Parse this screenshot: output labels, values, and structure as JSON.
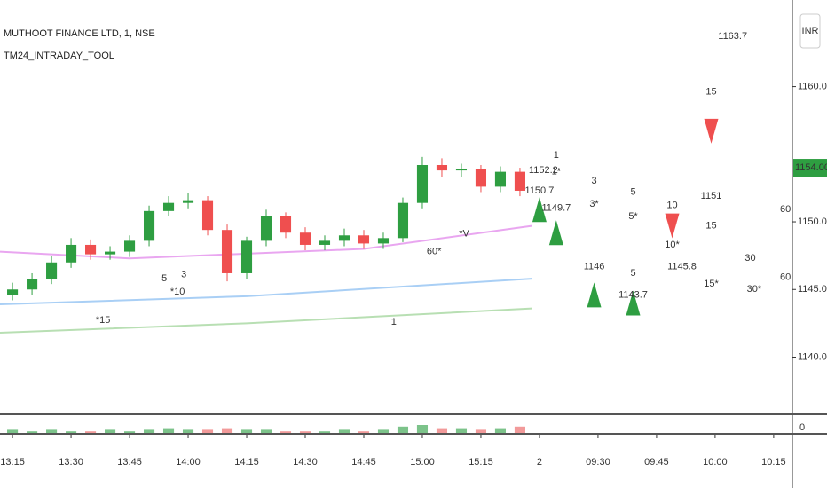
{
  "chart_data": {
    "type": "candlestick",
    "title": "MUTHOOT FINANCE LTD, 1, NSE",
    "subtitle": "TM24_INTRADAY_TOOL",
    "currency": "INR",
    "up_color": "#2e9e41",
    "down_color": "#ef4f4f",
    "xlim": [
      -3.2,
      199.8
    ],
    "xticks": [
      {
        "value": 0,
        "label": "13:15"
      },
      {
        "value": 15,
        "label": "13:30"
      },
      {
        "value": 30,
        "label": "13:45"
      },
      {
        "value": 45,
        "label": "14:00"
      },
      {
        "value": 60,
        "label": "14:15"
      },
      {
        "value": 75,
        "label": "14:30"
      },
      {
        "value": 90,
        "label": "14:45"
      },
      {
        "value": 105,
        "label": "15:00"
      },
      {
        "value": 120,
        "label": "15:15"
      },
      {
        "value": 135,
        "label": "2"
      },
      {
        "value": 150,
        "label": "09:30"
      },
      {
        "value": 165,
        "label": "09:45"
      },
      {
        "value": 180,
        "label": "10:00"
      },
      {
        "value": 195,
        "label": "10:15"
      }
    ],
    "ylim": [
      1135.9,
      1166.4
    ],
    "yticks": [
      {
        "value": 1140,
        "label": "1140.00"
      },
      {
        "value": 1145,
        "label": "1145.00"
      },
      {
        "value": 1150,
        "label": "1150.00"
      },
      {
        "value": 1160,
        "label": "1160.00"
      }
    ],
    "last_price": {
      "value": 1154,
      "label": "1154.00"
    },
    "x": [
      0,
      5,
      10,
      15,
      20,
      25,
      30,
      35,
      40,
      45,
      50,
      55,
      60,
      65,
      70,
      75,
      80,
      85,
      90,
      95,
      100,
      105,
      110,
      115,
      120,
      125,
      130
    ],
    "open": [
      1144.6,
      1145.0,
      1145.8,
      1147.0,
      1148.3,
      1147.6,
      1147.8,
      1148.6,
      1150.8,
      1151.4,
      1151.6,
      1149.4,
      1146.2,
      1148.6,
      1150.4,
      1149.2,
      1148.3,
      1148.6,
      1149.0,
      1148.4,
      1148.8,
      1151.4,
      1154.2,
      1153.8,
      1153.9,
      1152.6,
      1153.7
    ],
    "high": [
      1145.5,
      1146.2,
      1147.5,
      1148.8,
      1148.7,
      1148.2,
      1149.0,
      1151.2,
      1151.9,
      1152.1,
      1151.9,
      1149.8,
      1148.9,
      1150.9,
      1150.7,
      1149.6,
      1149.0,
      1149.5,
      1149.4,
      1149.2,
      1151.8,
      1154.8,
      1154.7,
      1154.3,
      1154.2,
      1154.1,
      1154.0
    ],
    "low": [
      1144.2,
      1144.6,
      1145.4,
      1146.6,
      1147.2,
      1147.2,
      1147.4,
      1148.2,
      1150.4,
      1151.0,
      1149.0,
      1145.6,
      1145.8,
      1148.2,
      1148.8,
      1147.9,
      1147.9,
      1148.2,
      1148.0,
      1148.0,
      1148.5,
      1151.0,
      1153.3,
      1153.3,
      1152.2,
      1152.2,
      1151.9
    ],
    "close": [
      1145.0,
      1145.8,
      1147.0,
      1148.3,
      1147.6,
      1147.8,
      1148.6,
      1150.8,
      1151.4,
      1151.6,
      1149.4,
      1146.2,
      1148.6,
      1150.4,
      1149.2,
      1148.3,
      1148.6,
      1149.0,
      1148.4,
      1148.8,
      1151.4,
      1154.2,
      1153.8,
      1153.9,
      1152.6,
      1153.7,
      1152.3
    ],
    "volume": [
      2,
      1,
      2,
      1,
      1,
      2,
      1,
      2,
      3,
      2,
      2,
      3,
      2,
      2,
      1,
      1,
      1,
      2,
      1,
      2,
      4,
      5,
      3,
      3,
      2,
      3,
      4
    ],
    "volume_ylim": [
      0,
      10
    ],
    "volume_yticks": [
      0
    ],
    "series": [
      {
        "color": "#e9a6f0",
        "x": [
          -3.2,
          30,
          90,
          133
        ],
        "values": [
          1147.8,
          1147.3,
          1148.0,
          1149.7
        ]
      },
      {
        "color": "#a9cff5",
        "x": [
          -3.2,
          60,
          133
        ],
        "values": [
          1143.9,
          1144.5,
          1145.8
        ]
      },
      {
        "color": "#b8dfb3",
        "x": [
          -3.2,
          60,
          133
        ],
        "values": [
          1141.8,
          1142.5,
          1143.6
        ]
      }
    ],
    "signals": [
      {
        "direction": "up",
        "x": 135,
        "y": 1150.9
      },
      {
        "direction": "up",
        "x": 139.3,
        "y": 1149.2
      },
      {
        "direction": "up",
        "x": 149,
        "y": 1144.6
      },
      {
        "direction": "up",
        "x": 159,
        "y": 1144.0
      },
      {
        "direction": "down",
        "x": 169,
        "y": 1149.7
      },
      {
        "direction": "down",
        "x": 179,
        "y": 1156.7
      }
    ],
    "annotations": [
      {
        "text": "1163.7",
        "x": 184.5,
        "y": 1163.7,
        "color": "#ef4f4f"
      },
      {
        "text": "15",
        "x": 179,
        "y": 1159.6,
        "color": "#777"
      },
      {
        "text": "1151",
        "x": 179,
        "y": 1151.9,
        "color": "#ef4f4f"
      },
      {
        "text": "15",
        "x": 179,
        "y": 1149.7,
        "color": "#2e9e41"
      },
      {
        "text": "10",
        "x": 169,
        "y": 1151.2,
        "color": "#2e9e41"
      },
      {
        "text": "10*",
        "x": 169,
        "y": 1148.3,
        "color": "#2e9e41"
      },
      {
        "text": "1145.8",
        "x": 171.5,
        "y": 1146.7,
        "color": "#2e9e41"
      },
      {
        "text": "15*",
        "x": 179,
        "y": 1145.4,
        "color": "#2e9e41"
      },
      {
        "text": "30",
        "x": 189,
        "y": 1147.3,
        "color": "#2e9e41"
      },
      {
        "text": "30*",
        "x": 190,
        "y": 1145.0,
        "color": "#2e9e41"
      },
      {
        "text": "60",
        "x": 198,
        "y": 1150.9,
        "color": "#ef4f4f"
      },
      {
        "text": "60",
        "x": 198,
        "y": 1145.9,
        "color": "#ef4f4f"
      },
      {
        "text": "3",
        "x": 149,
        "y": 1153.0,
        "color": "#2e9e41"
      },
      {
        "text": "3*",
        "x": 149,
        "y": 1151.3,
        "color": "#2e9e41"
      },
      {
        "text": "5",
        "x": 159,
        "y": 1152.2,
        "color": "#2e9e41"
      },
      {
        "text": "5*",
        "x": 159,
        "y": 1150.4,
        "color": "#2e9e41"
      },
      {
        "text": "1146",
        "x": 149,
        "y": 1146.7,
        "color": "#2e9e41"
      },
      {
        "text": "5",
        "x": 159,
        "y": 1146.2,
        "color": "#777"
      },
      {
        "text": "1143.7",
        "x": 159,
        "y": 1144.6,
        "color": "#2e9e41"
      },
      {
        "text": "1149.7",
        "x": 139.3,
        "y": 1151.0,
        "color": "#2e9e41"
      },
      {
        "text": "1152.2",
        "x": 136,
        "y": 1153.8,
        "color": "#2196f3"
      },
      {
        "text": "1150.7",
        "x": 135,
        "y": 1152.3,
        "color": "#f0c020"
      },
      {
        "text": "1",
        "x": 139.3,
        "y": 1154.9,
        "color": "#2e9e41"
      },
      {
        "text": "1*",
        "x": 139.3,
        "y": 1153.7,
        "color": "#2e9e41"
      },
      {
        "text": "5",
        "x": 38.9,
        "y": 1145.8,
        "color": "#333"
      },
      {
        "text": "3",
        "x": 43.9,
        "y": 1146.1,
        "color": "#333"
      },
      {
        "text": "*10",
        "x": 42.3,
        "y": 1144.8,
        "color": "#333"
      },
      {
        "text": "*15",
        "x": 23.2,
        "y": 1142.7,
        "color": "#333"
      },
      {
        "text": "60*",
        "x": 108,
        "y": 1147.8,
        "color": "#333"
      },
      {
        "text": "*V",
        "x": 115.7,
        "y": 1149.1,
        "color": "#333"
      },
      {
        "text": "1",
        "x": 97.7,
        "y": 1142.6,
        "color": "#333"
      }
    ]
  }
}
